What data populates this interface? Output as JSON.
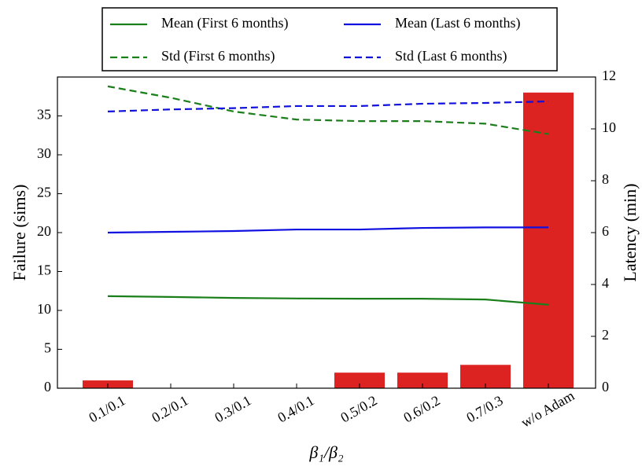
{
  "chart_data": {
    "type": "bar",
    "xlabel": "β₁/β₂",
    "ylabel": "Failure (sims)",
    "y2label": "Latency (min)",
    "categories": [
      "0.1/0.1",
      "0.2/0.1",
      "0.3/0.1",
      "0.4/0.1",
      "0.5/0.2",
      "0.6/0.2",
      "0.7/0.3",
      "w/o Adam"
    ],
    "series": [
      {
        "type": "bar",
        "color": "#dd2222",
        "values": [
          1,
          0,
          0,
          0,
          2,
          2,
          3,
          38
        ]
      },
      {
        "type": "line",
        "name": "Mean (First 6 months)",
        "color": "#1a7f1a",
        "linestyle": "solid",
        "axis": "y2",
        "values": [
          3.55,
          3.52,
          3.48,
          3.46,
          3.45,
          3.45,
          3.42,
          3.22
        ]
      },
      {
        "type": "line",
        "name": "Mean (Last 6 months)",
        "color": "#1010e0",
        "linestyle": "solid",
        "axis": "y2",
        "values": [
          6.0,
          6.03,
          6.06,
          6.12,
          6.12,
          6.18,
          6.2,
          6.2
        ]
      },
      {
        "type": "line",
        "name": "Std (First 6 months)",
        "color": "#1a7f1a",
        "linestyle": "dashed",
        "axis": "y2",
        "values": [
          11.64,
          11.2,
          10.67,
          10.36,
          10.3,
          10.3,
          10.2,
          9.8
        ]
      },
      {
        "type": "line",
        "name": "Std (Last 6 months)",
        "color": "#1010e0",
        "linestyle": "dashed",
        "axis": "y2",
        "values": [
          10.67,
          10.75,
          10.8,
          10.88,
          10.88,
          10.97,
          11.0,
          11.06
        ]
      }
    ],
    "ylim": [
      0,
      40
    ],
    "yticks": [
      0,
      5,
      10,
      15,
      20,
      25,
      30,
      35
    ],
    "y2lim": [
      0,
      12
    ],
    "y2ticks": [
      0,
      2,
      4,
      6,
      8,
      10,
      12
    ],
    "legend": "upper center",
    "legend_columns": 2
  }
}
